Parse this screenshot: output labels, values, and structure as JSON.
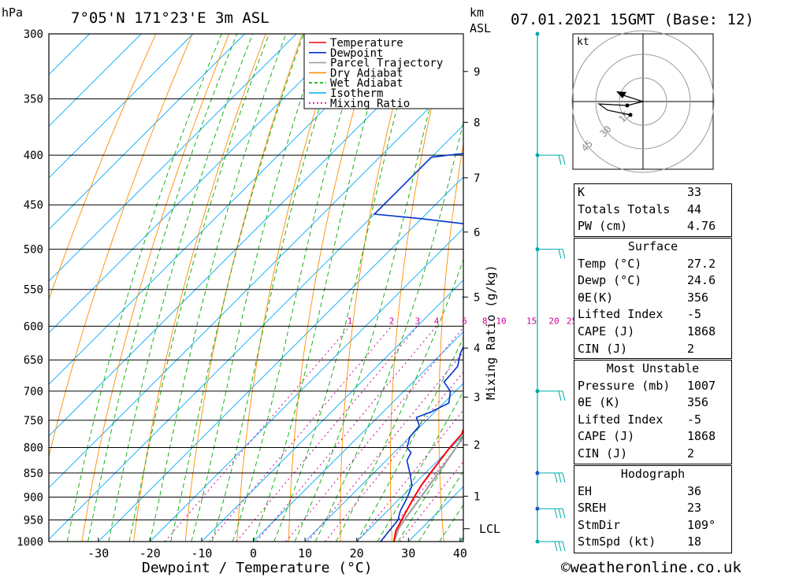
{
  "header": {
    "unit_left": "hPa",
    "location": "7°05'N 171°23'E 3m ASL",
    "unit_km": "km",
    "unit_asl": "ASL",
    "datetime": "07.01.2021 15GMT (Base: 12)"
  },
  "axes": {
    "xlabel": "Dewpoint / Temperature (°C)",
    "ylabel_right": "Mixing Ratio (g/kg)",
    "lcl_label": "LCL"
  },
  "legend": [
    {
      "label": "Temperature",
      "color": "#ff0000",
      "style": "solid"
    },
    {
      "label": "Dewpoint",
      "color": "#0033cc",
      "style": "solid"
    },
    {
      "label": "Parcel Trajectory",
      "color": "#a0a0a0",
      "style": "solid"
    },
    {
      "label": "Dry Adiabat",
      "color": "#ff8c00",
      "style": "solid"
    },
    {
      "label": "Wet Adiabat",
      "color": "#00aa00",
      "style": "dashed"
    },
    {
      "label": "Isotherm",
      "color": "#00aaff",
      "style": "solid"
    },
    {
      "label": "Mixing Ratio",
      "color": "#cc0099",
      "style": "dotted"
    }
  ],
  "chart_data": {
    "type": "line",
    "title": "7°05'N 171°23'E 3m ASL",
    "xlabel": "Dewpoint / Temperature (°C)",
    "ylabel": "hPa",
    "pressure_ticks": [
      300,
      350,
      400,
      450,
      500,
      550,
      600,
      650,
      700,
      750,
      800,
      850,
      900,
      950,
      1000
    ],
    "temp_ticks": [
      -30,
      -20,
      -10,
      0,
      10,
      20,
      30,
      40
    ],
    "xlim": [
      -40,
      40
    ],
    "ylim": [
      1000,
      300
    ],
    "km_ticks": [
      {
        "km": "1",
        "p": 898
      },
      {
        "km": "2",
        "p": 795
      },
      {
        "km": "3",
        "p": 710
      },
      {
        "km": "4",
        "p": 632
      },
      {
        "km": "5",
        "p": 560
      },
      {
        "km": "6",
        "p": 480
      },
      {
        "km": "7",
        "p": 422
      },
      {
        "km": "8",
        "p": 370
      },
      {
        "km": "9",
        "p": 328
      }
    ],
    "lcl_pressure": 970,
    "mixing_ratio_labels": [
      "1",
      "2",
      "3",
      "4",
      "6",
      "8",
      "10",
      "15",
      "20",
      "25"
    ],
    "mixing_ratio_values": [
      1,
      2,
      3,
      4,
      6,
      8,
      10,
      15,
      20,
      25
    ],
    "series": [
      {
        "name": "Temperature",
        "points": [
          [
            1000,
            27.2
          ],
          [
            975,
            25.5
          ],
          [
            950,
            24.5
          ],
          [
            925,
            23.5
          ],
          [
            900,
            22.5
          ],
          [
            875,
            21.6
          ],
          [
            850,
            21.0
          ],
          [
            825,
            20.4
          ],
          [
            800,
            19.8
          ],
          [
            775,
            19.5
          ],
          [
            750,
            17.8
          ],
          [
            725,
            15.8
          ],
          [
            700,
            14.0
          ],
          [
            675,
            12.2
          ],
          [
            650,
            10.2
          ],
          [
            625,
            8.2
          ],
          [
            600,
            6.2
          ],
          [
            575,
            4.5
          ],
          [
            550,
            2.6
          ],
          [
            525,
            0.6
          ],
          [
            500,
            -2.2
          ],
          [
            490,
            -2.8
          ],
          [
            475,
            -3.2
          ],
          [
            450,
            -6.5
          ],
          [
            425,
            -9.8
          ],
          [
            400,
            -13.2
          ],
          [
            380,
            -17.2
          ],
          [
            360,
            -21.5
          ],
          [
            350,
            -24.0
          ],
          [
            335,
            -27.2
          ],
          [
            320,
            -30.0
          ],
          [
            310,
            -32.0
          ],
          [
            300,
            -34.5
          ]
        ]
      },
      {
        "name": "Dewpoint",
        "points": [
          [
            1000,
            24.6
          ],
          [
            950,
            23.8
          ],
          [
            930,
            22.5
          ],
          [
            900,
            21.2
          ],
          [
            875,
            19.8
          ],
          [
            850,
            17.0
          ],
          [
            825,
            14.0
          ],
          [
            810,
            13.3
          ],
          [
            800,
            11.5
          ],
          [
            780,
            10.0
          ],
          [
            760,
            9.7
          ],
          [
            745,
            7.5
          ],
          [
            735,
            9.3
          ],
          [
            720,
            11.0
          ],
          [
            700,
            9.0
          ],
          [
            685,
            6.0
          ],
          [
            672,
            5.8
          ],
          [
            660,
            5.6
          ],
          [
            640,
            3.6
          ],
          [
            620,
            2.2
          ],
          [
            600,
            -0.3
          ],
          [
            590,
            -0.6
          ],
          [
            580,
            -1.4
          ],
          [
            575,
            -3.5
          ],
          [
            560,
            -6.8
          ],
          [
            550,
            -6.2
          ],
          [
            540,
            -8.8
          ],
          [
            530,
            -6.2
          ],
          [
            525,
            -2.0
          ],
          [
            510,
            -0.5
          ],
          [
            500,
            -3.0
          ],
          [
            485,
            -10.0
          ],
          [
            478,
            -9.0
          ],
          [
            465,
            -30.0
          ],
          [
            460,
            -40.0
          ],
          [
            402,
            -40.0
          ],
          [
            400,
            -37.0
          ],
          [
            392,
            -24.0
          ],
          [
            385,
            -24.5
          ],
          [
            375,
            -27.5
          ],
          [
            365,
            -36.0
          ],
          [
            355,
            -37.0
          ],
          [
            345,
            -32.5
          ],
          [
            330,
            -37.5
          ],
          [
            325,
            -34.5
          ],
          [
            312,
            -39.0
          ],
          [
            302,
            -46.0
          ],
          [
            300,
            -46.0
          ]
        ]
      },
      {
        "name": "Parcel Trajectory",
        "points": [
          [
            1000,
            27.2
          ],
          [
            970,
            25.6
          ],
          [
            950,
            25.0
          ],
          [
            900,
            23.8
          ],
          [
            850,
            22.5
          ],
          [
            800,
            21.0
          ],
          [
            750,
            19.2
          ],
          [
            700,
            17.0
          ],
          [
            650,
            14.4
          ],
          [
            600,
            11.4
          ],
          [
            550,
            7.8
          ],
          [
            500,
            3.6
          ],
          [
            450,
            -1.6
          ],
          [
            400,
            -7.8
          ],
          [
            350,
            -15.6
          ],
          [
            300,
            -25.5
          ]
        ]
      }
    ]
  },
  "hodograph": {
    "unit": "kt",
    "ring_labels": [
      "15",
      "30",
      "45"
    ]
  },
  "stats": {
    "rows1": [
      {
        "label": "K",
        "value": "33"
      },
      {
        "label": "Totals Totals",
        "value": "44"
      },
      {
        "label": "PW (cm)",
        "value": "4.76"
      }
    ],
    "surface_title": "Surface",
    "surface": [
      {
        "label": "Temp (°C)",
        "value": "27.2"
      },
      {
        "label": "Dewp (°C)",
        "value": "24.6"
      },
      {
        "label": "θE(K)",
        "value": "356"
      },
      {
        "label": "Lifted Index",
        "value": "-5"
      },
      {
        "label": "CAPE (J)",
        "value": "1868"
      },
      {
        "label": "CIN (J)",
        "value": "2"
      }
    ],
    "mu_title": "Most Unstable",
    "mu": [
      {
        "label": "Pressure (mb)",
        "value": "1007"
      },
      {
        "label": "θE (K)",
        "value": "356"
      },
      {
        "label": "Lifted Index",
        "value": "-5"
      },
      {
        "label": "CAPE (J)",
        "value": "1868"
      },
      {
        "label": "CIN (J)",
        "value": "2"
      }
    ],
    "hodo_title": "Hodograph",
    "hodo": [
      {
        "label": "EH",
        "value": "36"
      },
      {
        "label": "SREH",
        "value": "23"
      },
      {
        "label": "StmDir",
        "value": "109°"
      },
      {
        "label": "StmSpd (kt)",
        "value": "18"
      }
    ]
  },
  "footer": {
    "copyright": "©weatheronline.co.uk"
  },
  "colors": {
    "temperature": "#ff0000",
    "dewpoint": "#0033cc",
    "parcel": "#a0a0a0",
    "dry_adiabat": "#ff8c00",
    "wet_adiabat": "#00aa00",
    "isotherm": "#00aaff",
    "mixing_ratio": "#cc0099",
    "wind": "#00aaaa"
  }
}
